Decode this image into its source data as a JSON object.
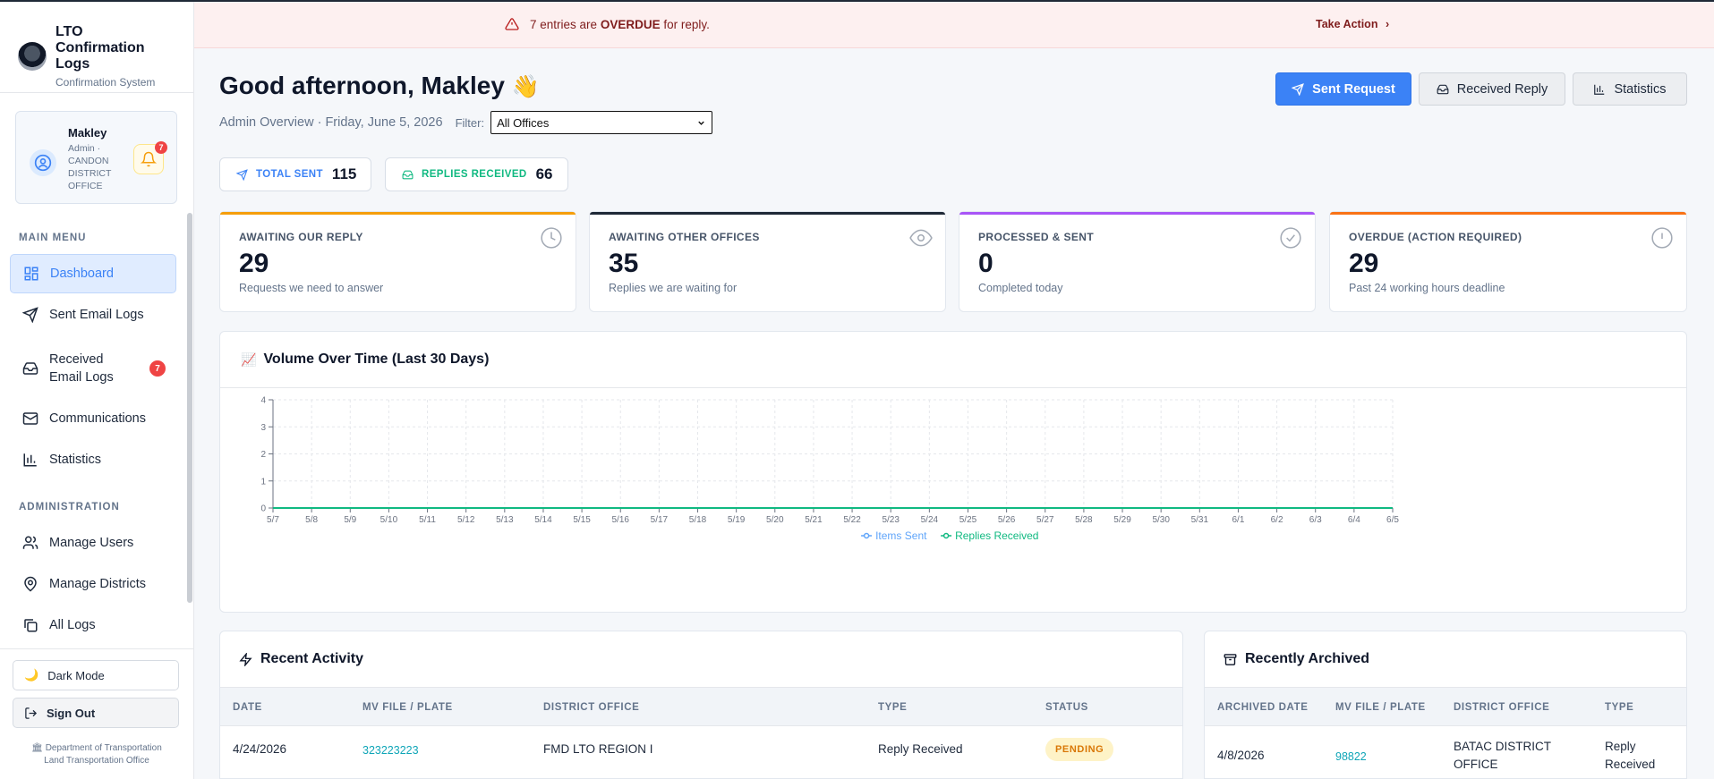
{
  "app": {
    "title": "LTO Confirmation Logs",
    "subtitle": "Confirmation System"
  },
  "user": {
    "name": "Makley",
    "role": "Admin · CANDON DISTRICT OFFICE",
    "notifications": "7"
  },
  "sidebar": {
    "main_menu_label": "MAIN MENU",
    "main_items": [
      {
        "label": "Dashboard",
        "icon": "dashboard-icon",
        "active": true
      },
      {
        "label": "Sent Email Logs",
        "icon": "send-icon"
      },
      {
        "label": "Received Email Logs",
        "icon": "inbox-icon",
        "badge": "7"
      },
      {
        "label": "Communications",
        "icon": "mail-icon"
      },
      {
        "label": "Statistics",
        "icon": "bar-chart-icon"
      }
    ],
    "admin_label": "ADMINISTRATION",
    "admin_items": [
      {
        "label": "Manage Users",
        "icon": "users-icon"
      },
      {
        "label": "Manage Districts",
        "icon": "map-pin-icon"
      },
      {
        "label": "All Logs",
        "icon": "layers-icon"
      }
    ],
    "dark_mode_label": "Dark Mode",
    "sign_out_label": "Sign Out",
    "dept_line1": "Department of Transportation",
    "dept_line2": "Land Transportation Office"
  },
  "alert": {
    "count_text": "7 entries are",
    "overdue": "OVERDUE",
    "suffix": "for reply.",
    "action": "Take Action",
    "color": "#7f1d1d"
  },
  "header": {
    "greeting": "Good afternoon, Makley",
    "wave": "👋",
    "overview": "Admin Overview · Friday, June 5, 2026",
    "filter_label": "Filter:",
    "filter_value": "All Offices",
    "buttons": {
      "sent": "Sent Request",
      "received": "Received Reply",
      "statistics": "Statistics"
    }
  },
  "pills": {
    "total_sent_label": "TOTAL SENT",
    "total_sent": "115",
    "replies_label": "REPLIES RECEIVED",
    "replies": "66"
  },
  "cards": [
    {
      "label": "AWAITING OUR REPLY",
      "value": "29",
      "desc": "Requests we need to answer",
      "color": "#f59e0b",
      "icon": "clock-icon"
    },
    {
      "label": "AWAITING OTHER OFFICES",
      "value": "35",
      "desc": "Replies we are waiting for",
      "color": "#1f2937",
      "icon": "eye-icon"
    },
    {
      "label": "PROCESSED & SENT",
      "value": "0",
      "desc": "Completed today",
      "color": "#a855f7",
      "icon": "check-circle-icon"
    },
    {
      "label": "OVERDUE (ACTION REQUIRED)",
      "value": "29",
      "desc": "Past 24 working hours deadline",
      "color": "#f97316",
      "icon": "alert-circle-icon"
    }
  ],
  "chart_panel": {
    "emoji": "📈",
    "title": "Volume Over Time (Last 30 Days)"
  },
  "chart_data": {
    "type": "line",
    "x": [
      "5/7",
      "5/8",
      "5/9",
      "5/10",
      "5/11",
      "5/12",
      "5/13",
      "5/14",
      "5/15",
      "5/16",
      "5/17",
      "5/18",
      "5/19",
      "5/20",
      "5/21",
      "5/22",
      "5/23",
      "5/24",
      "5/25",
      "5/26",
      "5/27",
      "5/28",
      "5/29",
      "5/30",
      "5/31",
      "6/1",
      "6/2",
      "6/3",
      "6/4",
      "6/5"
    ],
    "y_ticks": [
      0,
      1,
      2,
      3,
      4
    ],
    "ylim": [
      0,
      4
    ],
    "grid": true,
    "legend_position": "bottom",
    "series": [
      {
        "name": "Items Sent",
        "color": "#60a5fa",
        "values": [
          0,
          0,
          0,
          0,
          0,
          0,
          0,
          0,
          0,
          0,
          0,
          0,
          0,
          0,
          0,
          0,
          0,
          0,
          0,
          0,
          0,
          0,
          0,
          0,
          0,
          0,
          0,
          0,
          0,
          0
        ]
      },
      {
        "name": "Replies Received",
        "color": "#10b981",
        "values": [
          0,
          0,
          0,
          0,
          0,
          0,
          0,
          0,
          0,
          0,
          0,
          0,
          0,
          0,
          0,
          0,
          0,
          0,
          0,
          0,
          0,
          0,
          0,
          0,
          0,
          0,
          0,
          0,
          0,
          0
        ]
      }
    ]
  },
  "recent": {
    "title": "Recent Activity",
    "columns": [
      "DATE",
      "MV FILE / PLATE",
      "DISTRICT OFFICE",
      "TYPE",
      "STATUS"
    ],
    "rows": [
      {
        "date": "4/24/2026",
        "plate": "323223223",
        "office": "FMD LTO REGION I",
        "type": "Reply Received",
        "status": "PENDING"
      }
    ]
  },
  "archived": {
    "title": "Recently Archived",
    "columns": [
      "ARCHIVED DATE",
      "MV FILE / PLATE",
      "DISTRICT OFFICE",
      "TYPE"
    ],
    "rows": [
      {
        "date": "4/8/2026",
        "plate": "98822",
        "office": "BATAC DISTRICT OFFICE",
        "type": "Reply Received"
      }
    ]
  }
}
